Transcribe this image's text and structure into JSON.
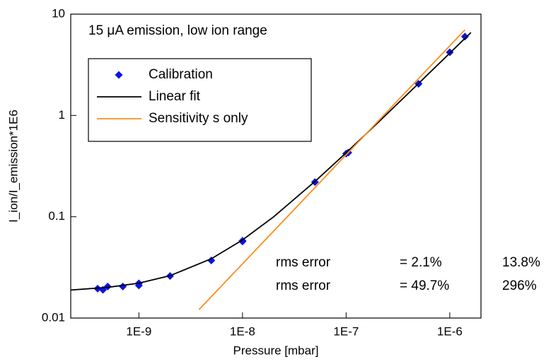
{
  "chart_data": {
    "type": "scatter",
    "title": "15 μA emission, low ion range",
    "x_label": "Pressure [mbar]",
    "y_label": "I_ion/I_emission*1E6",
    "log_x": true,
    "log_y": true,
    "xlim": [
      2.2e-10,
      2e-06
    ],
    "ylim": [
      0.01,
      10
    ],
    "xticks": [
      {
        "value": 1e-09,
        "label": "1E-9"
      },
      {
        "value": 1e-08,
        "label": "1E-8"
      },
      {
        "value": 1e-07,
        "label": "1E-7"
      },
      {
        "value": 1e-06,
        "label": "1E-6"
      }
    ],
    "yticks": [
      0.01,
      0.1,
      1,
      10
    ],
    "legend": "upper left",
    "series": [
      {
        "name": "Calibration",
        "style": "markers",
        "color": "#0a14e6",
        "x": [
          4e-10,
          4.5e-10,
          5e-10,
          7e-10,
          1e-09,
          1e-09,
          2e-09,
          5e-09,
          1e-08,
          1e-08,
          5e-08,
          1e-07,
          1.05e-07,
          5e-07,
          1e-06,
          1.4e-06
        ],
        "values": [
          0.0195,
          0.019,
          0.0205,
          0.0205,
          0.021,
          0.022,
          0.026,
          0.037,
          0.058,
          0.057,
          0.22,
          0.42,
          0.43,
          2.05,
          4.2,
          6
        ]
      },
      {
        "name": "Linear fit",
        "style": "line",
        "color": "#000000",
        "x": [
          2.2e-10,
          5e-10,
          1e-09,
          2e-09,
          5e-09,
          1e-08,
          2e-08,
          5e-08,
          1e-07,
          2e-07,
          5e-07,
          1e-06,
          1.6e-06
        ],
        "values": [
          0.0189,
          0.0201,
          0.0221,
          0.0262,
          0.0385,
          0.059,
          0.1,
          0.223,
          0.428,
          0.838,
          2.07,
          4.12,
          6.58
        ]
      },
      {
        "name": "Sensitivity s only",
        "style": "line",
        "color": "#ff8c1a",
        "x": [
          3.8e-09,
          1.4e-06
        ],
        "values": [
          0.0121,
          7
        ]
      }
    ],
    "annotations": [
      [
        {
          "text": "rms error",
          "color": "#000000"
        },
        {
          "text": "= 2.1%",
          "color": "#000000"
        },
        {
          "text": "13.8%",
          "color": "#2a2ae0"
        }
      ],
      [
        {
          "text": "rms error",
          "color": "#000000"
        },
        {
          "text": "= 49.7%",
          "color": "#ff8c1a"
        },
        {
          "text": "296%",
          "color": "#2a2ae0"
        }
      ]
    ]
  }
}
